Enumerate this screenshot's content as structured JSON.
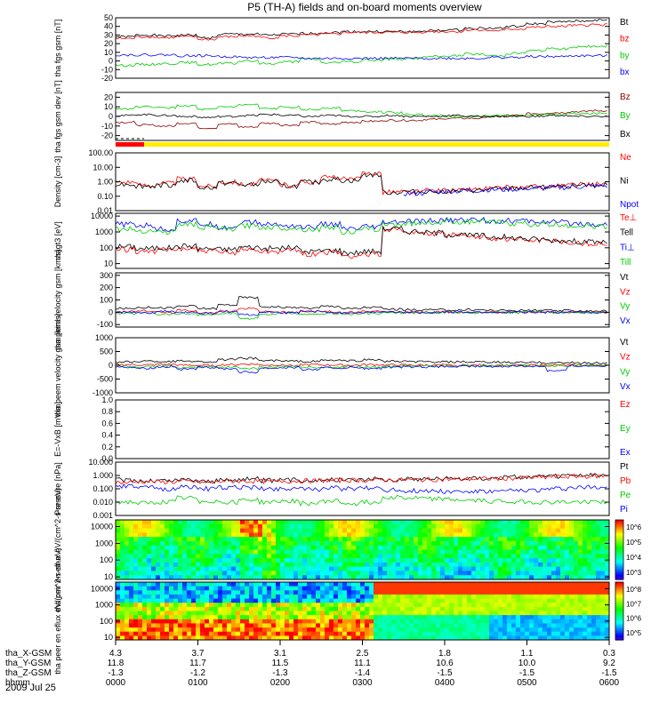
{
  "title": "P5 (TH-A) fields and on-board moments overview",
  "date": "2009 Jul 25",
  "chart_data": [
    {
      "type": "line",
      "panel": "fgs_gsm",
      "ylabel": "tha fgs gsm [nT]",
      "yticks": [
        "50",
        "40",
        "30",
        "20",
        "10",
        "0",
        "-10",
        "-20"
      ],
      "ylim": [
        -20,
        50
      ],
      "series": [
        {
          "name": "Bt",
          "color": "#000000",
          "values": [
            28,
            30,
            29,
            30,
            27,
            31,
            31,
            30,
            31,
            32,
            33,
            34,
            34,
            34,
            34,
            35,
            36,
            38,
            38,
            40,
            43,
            45,
            46,
            47
          ]
        },
        {
          "name": "bz",
          "color": "#ff0000",
          "values": [
            26,
            28,
            27,
            28,
            25,
            28,
            29,
            27,
            29,
            30,
            31,
            33,
            33,
            33,
            33,
            34,
            34,
            36,
            35,
            37,
            39,
            40,
            41,
            42
          ]
        },
        {
          "name": "by",
          "color": "#00cc00",
          "values": [
            -5,
            -4,
            -3,
            -2,
            -4,
            -3,
            0,
            -3,
            -1,
            2,
            -2,
            -1,
            1,
            2,
            3,
            5,
            6,
            8,
            6,
            9,
            12,
            14,
            16,
            17
          ]
        },
        {
          "name": "bx",
          "color": "#0000ff",
          "values": [
            7,
            7,
            7,
            6,
            6,
            5,
            4,
            4,
            4,
            3,
            3,
            3,
            3,
            3,
            3,
            3,
            3,
            3,
            4,
            4,
            5,
            5,
            6,
            6
          ]
        }
      ]
    },
    {
      "type": "line",
      "panel": "fgs_gsm_dev",
      "ylabel": "tha fgs gsm dev [nT]",
      "yticks": [
        "20",
        "10",
        "0",
        "-10",
        "-20"
      ],
      "ylim": [
        -25,
        25
      ],
      "series": [
        {
          "name": "Bz",
          "color": "#880000",
          "values": [
            -6,
            -9,
            -10,
            -7,
            -12,
            -8,
            -11,
            -7,
            -9,
            -6,
            -8,
            -6,
            -5,
            -4,
            -4,
            -3,
            -2,
            -2,
            0,
            1,
            3,
            4,
            5,
            6
          ]
        },
        {
          "name": "By",
          "color": "#00cc00",
          "values": [
            8,
            10,
            9,
            11,
            7,
            10,
            12,
            8,
            10,
            7,
            9,
            6,
            5,
            4,
            2,
            1,
            0,
            0,
            1,
            1,
            2,
            2,
            3,
            3
          ]
        },
        {
          "name": "Bx",
          "color": "#000000",
          "values": [
            1,
            2,
            1,
            0,
            -1,
            0,
            1,
            2,
            1,
            0,
            1,
            0,
            0,
            1,
            0,
            0,
            1,
            0,
            0,
            0,
            0,
            1,
            0,
            0
          ]
        }
      ]
    },
    {
      "type": "line",
      "panel": "density",
      "ylabel": "Density [cm-3]",
      "yticks": [
        "100.00",
        "10.00",
        "1.00",
        "0.10",
        "0.01"
      ],
      "ylim": [
        0.01,
        100
      ],
      "yscale": "log",
      "series": [
        {
          "name": "Ne",
          "color": "#ff0000",
          "values": [
            1,
            0.6,
            0.8,
            1.5,
            0.5,
            1,
            0.7,
            1.2,
            0.6,
            1,
            2,
            1.5,
            4,
            0.2,
            0.2,
            0.25,
            0.25,
            0.3,
            0.35,
            0.4,
            0.45,
            0.5,
            0.6,
            0.7
          ]
        },
        {
          "name": "Ni",
          "color": "#000000",
          "values": [
            0.7,
            0.5,
            0.6,
            1.2,
            0.4,
            0.8,
            0.6,
            1,
            0.5,
            0.9,
            1.5,
            1.2,
            3,
            0.18,
            0.2,
            0.22,
            0.22,
            0.25,
            0.3,
            0.35,
            0.4,
            0.45,
            0.5,
            0.6
          ]
        },
        {
          "name": "Npot",
          "color": "#0000ff",
          "values": [
            null,
            null,
            null,
            null,
            null,
            null,
            null,
            null,
            null,
            null,
            null,
            null,
            null,
            null,
            0.15,
            0.2,
            0.22,
            0.25,
            0.28,
            0.3,
            0.35,
            0.4,
            0.45,
            0.5
          ]
        }
      ]
    },
    {
      "type": "line",
      "panel": "temperature",
      "ylabel": "magt3 [eV]",
      "yticks": [
        "10000",
        "1000",
        "100",
        "10"
      ],
      "ylim": [
        5,
        15000
      ],
      "yscale": "log",
      "series": [
        {
          "name": "Te⊥",
          "color": "#ff0000",
          "values": [
            80,
            60,
            70,
            90,
            60,
            50,
            80,
            60,
            70,
            40,
            50,
            30,
            40,
            1500,
            1000,
            800,
            600,
            500,
            400,
            350,
            300,
            250,
            200,
            180
          ]
        },
        {
          "name": "Tell",
          "color": "#000000",
          "values": [
            120,
            90,
            100,
            130,
            90,
            80,
            110,
            90,
            100,
            60,
            70,
            50,
            60,
            1600,
            1100,
            900,
            700,
            600,
            500,
            420,
            350,
            300,
            260,
            230
          ]
        },
        {
          "name": "Ti⊥",
          "color": "#0000ff",
          "values": [
            3000,
            2500,
            1500,
            5000,
            3000,
            2000,
            4000,
            3000,
            2500,
            2000,
            3000,
            1500,
            2000,
            4000,
            4500,
            5000,
            5500,
            6000,
            5000,
            5000,
            4500,
            4000,
            3500,
            3000
          ]
        },
        {
          "name": "Till",
          "color": "#00cc00",
          "values": [
            1500,
            1200,
            1000,
            3000,
            2000,
            1500,
            2500,
            2000,
            1800,
            1500,
            2000,
            1000,
            1500,
            3000,
            3500,
            4000,
            4500,
            4500,
            4000,
            3500,
            3000,
            2800,
            2500,
            2200
          ]
        }
      ]
    },
    {
      "type": "line",
      "panel": "peim_velocity",
      "ylabel": "tha peim velocity gsm [km/s]",
      "yticks": [
        "300",
        "200",
        "100",
        "0",
        "-100"
      ],
      "ylim": [
        -120,
        320
      ],
      "series": [
        {
          "name": "Vt",
          "color": "#000000",
          "values": [
            30,
            40,
            35,
            50,
            30,
            60,
            120,
            45,
            40,
            35,
            50,
            30,
            40,
            25,
            20,
            20,
            18,
            20,
            15,
            15,
            15,
            12,
            12,
            10
          ]
        },
        {
          "name": "Vz",
          "color": "#ff0000",
          "values": [
            5,
            10,
            0,
            15,
            -5,
            10,
            30,
            5,
            0,
            10,
            5,
            0,
            5,
            2,
            0,
            2,
            0,
            1,
            0,
            0,
            1,
            0,
            0,
            0
          ]
        },
        {
          "name": "Vy",
          "color": "#00cc00",
          "values": [
            -10,
            -5,
            -15,
            -10,
            -20,
            -10,
            -50,
            -15,
            -10,
            -20,
            -10,
            -15,
            -10,
            -5,
            -5,
            -3,
            -2,
            -2,
            -1,
            -1,
            0,
            0,
            0,
            0
          ]
        },
        {
          "name": "Vx",
          "color": "#0000ff",
          "values": [
            0,
            -5,
            5,
            0,
            -10,
            5,
            -20,
            0,
            -5,
            5,
            0,
            -5,
            0,
            0,
            0,
            0,
            0,
            0,
            0,
            0,
            0,
            0,
            0,
            0
          ]
        }
      ]
    },
    {
      "type": "line",
      "panel": "peem_velocity",
      "ylabel": "tha peem velocity gsm [km/s]",
      "yticks": [
        "1000",
        "500",
        "0",
        "-500",
        "-1000"
      ],
      "ylim": [
        -1000,
        1000
      ],
      "series": [
        {
          "name": "Vt",
          "color": "#000000",
          "values": [
            120,
            150,
            140,
            160,
            130,
            200,
            250,
            170,
            150,
            140,
            180,
            160,
            200,
            140,
            130,
            120,
            120,
            110,
            110,
            100,
            100,
            90,
            90,
            80
          ]
        },
        {
          "name": "Vz",
          "color": "#ff0000",
          "values": [
            20,
            10,
            30,
            0,
            -10,
            20,
            40,
            10,
            0,
            20,
            10,
            0,
            20,
            10,
            5,
            5,
            0,
            5,
            0,
            0,
            5,
            0,
            0,
            0
          ]
        },
        {
          "name": "Vy",
          "color": "#00cc00",
          "values": [
            -40,
            -60,
            -30,
            -80,
            -50,
            -70,
            -120,
            -60,
            -50,
            -70,
            -60,
            -50,
            -60,
            -40,
            -30,
            -30,
            -25,
            -20,
            -20,
            -15,
            -15,
            -10,
            -10,
            -10
          ]
        },
        {
          "name": "Vx",
          "color": "#0000ff",
          "values": [
            -60,
            -100,
            -50,
            -150,
            -80,
            -120,
            -250,
            -100,
            -80,
            -150,
            -100,
            -90,
            -120,
            -80,
            -60,
            -60,
            -50,
            -40,
            -40,
            -30,
            -30,
            -200,
            -20,
            -20
          ]
        }
      ]
    },
    {
      "type": "line",
      "panel": "efield",
      "ylabel": "E=-VxB [mV/m]",
      "yticks": [
        "1.0",
        "0.8",
        "0.6",
        "0.4",
        "0.2",
        "0.0"
      ],
      "ylim": [
        0,
        1
      ],
      "series": [
        {
          "name": "Ez",
          "color": "#ff0000",
          "values": []
        },
        {
          "name": "Ey",
          "color": "#00cc00",
          "values": []
        },
        {
          "name": "Ex",
          "color": "#0000ff",
          "values": []
        }
      ]
    },
    {
      "type": "line",
      "panel": "pressure",
      "ylabel": "Pressure [nPa]",
      "yticks": [
        "10.000",
        "1.000",
        "0.100",
        "0.010",
        "0.001"
      ],
      "ylim": [
        0.001,
        10
      ],
      "yscale": "log",
      "series": [
        {
          "name": "Pt",
          "color": "#000000",
          "values": [
            0.45,
            0.4,
            0.42,
            0.5,
            0.38,
            0.45,
            0.55,
            0.42,
            0.45,
            0.45,
            0.5,
            0.5,
            0.55,
            0.5,
            0.55,
            0.6,
            0.6,
            0.65,
            0.7,
            0.75,
            0.8,
            0.9,
            1,
            1.05
          ]
        },
        {
          "name": "Pb",
          "color": "#ff0000",
          "values": [
            0.3,
            0.35,
            0.33,
            0.35,
            0.3,
            0.38,
            0.38,
            0.36,
            0.38,
            0.4,
            0.42,
            0.45,
            0.45,
            0.46,
            0.48,
            0.5,
            0.52,
            0.55,
            0.58,
            0.63,
            0.7,
            0.8,
            0.85,
            0.9
          ]
        },
        {
          "name": "Pe",
          "color": "#00cc00",
          "values": [
            0.01,
            0.008,
            0.01,
            0.02,
            0.012,
            0.01,
            0.015,
            0.01,
            0.012,
            0.008,
            0.012,
            0.008,
            0.01,
            0.025,
            0.02,
            0.018,
            0.015,
            0.013,
            0.012,
            0.011,
            0.01,
            0.01,
            0.01,
            0.011
          ]
        },
        {
          "name": "Pi",
          "color": "#0000ff",
          "values": [
            0.15,
            0.12,
            0.1,
            0.14,
            0.1,
            0.12,
            0.13,
            0.1,
            0.11,
            0.09,
            0.12,
            0.1,
            0.12,
            0.08,
            0.07,
            0.07,
            0.06,
            0.06,
            0.06,
            0.07,
            0.08,
            0.1,
            0.12,
            0.14
          ]
        }
      ]
    },
    {
      "type": "heatmap",
      "panel": "peir_spec",
      "ylabel": "tha peir en eflux eV/(cm^2-s-sr-eV)",
      "yticks": [
        "10000",
        "1000",
        "100",
        "10"
      ],
      "ylim": [
        7,
        25000
      ],
      "yscale": "log",
      "colorbar_ticks": [
        "10^6",
        "10^5",
        "10^4",
        "10^3"
      ],
      "clim": [
        300,
        3000000
      ]
    },
    {
      "type": "heatmap",
      "panel": "peer_spec",
      "ylabel": "tha peer en eflux eV/(cm^2-s-sr-eV)",
      "yticks": [
        "10000",
        "1000",
        "100",
        "10"
      ],
      "ylim": [
        7,
        25000
      ],
      "yscale": "log",
      "colorbar_ticks": [
        "10^8",
        "10^7",
        "10^6",
        "10^5"
      ],
      "clim": [
        30000,
        300000000
      ]
    }
  ],
  "xaxis": {
    "rows": [
      {
        "label": "tha_X-GSM",
        "values": [
          "4.3",
          "3.7",
          "3.1",
          "2.5",
          "1.8",
          "1.1",
          "0.3"
        ]
      },
      {
        "label": "tha_Y-GSM",
        "values": [
          "11.8",
          "11.7",
          "11.5",
          "11.1",
          "10.6",
          "10.0",
          "9.2"
        ]
      },
      {
        "label": "tha_Z-GSM",
        "values": [
          "-1.3",
          "-1.2",
          "-1.3",
          "-1.4",
          "-1.5",
          "-1.5",
          "-1.5"
        ]
      },
      {
        "label": "hhmm",
        "values": [
          "0000",
          "0100",
          "0200",
          "0300",
          "0400",
          "0500",
          "0600"
        ]
      }
    ]
  }
}
